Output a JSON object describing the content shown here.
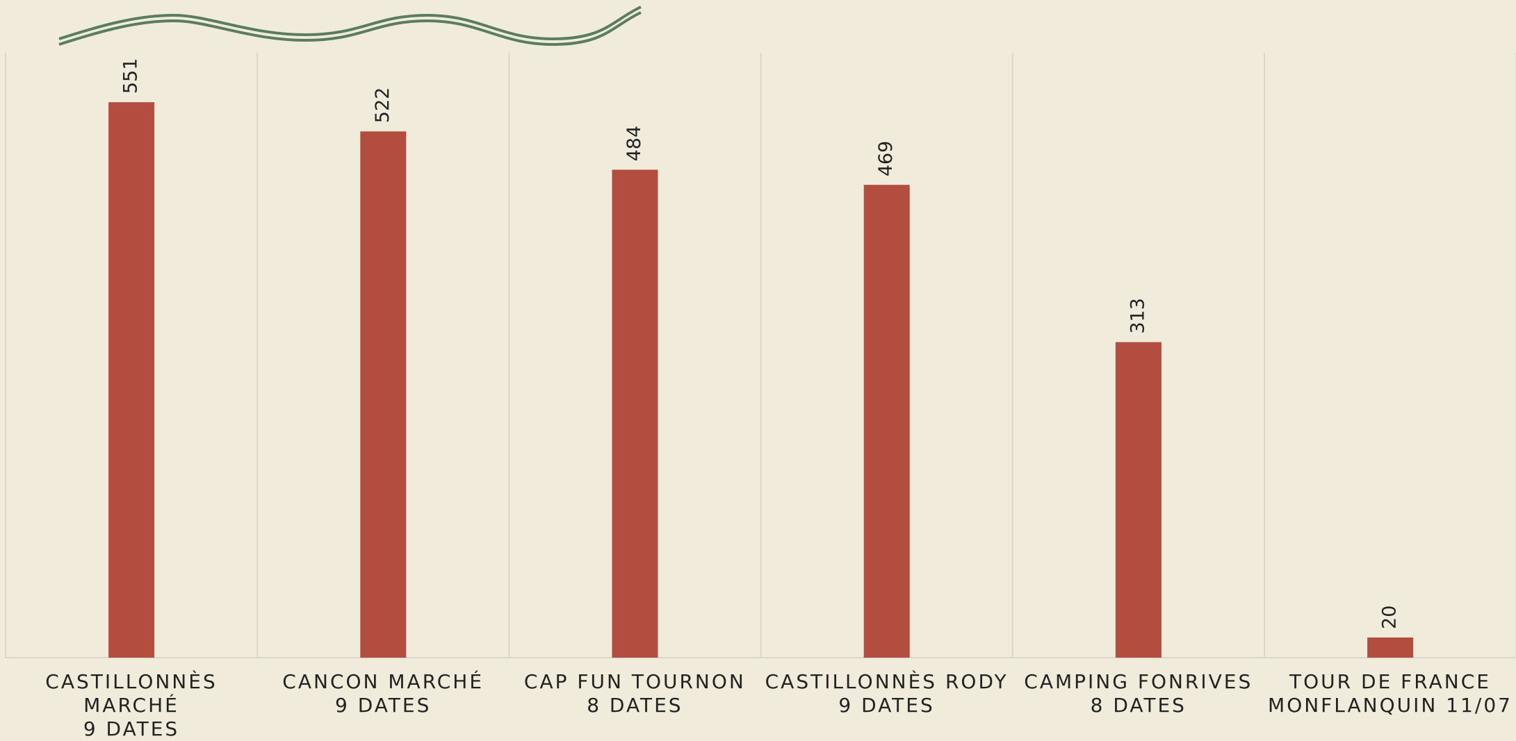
{
  "chart_data": {
    "type": "bar",
    "categories": [
      "CASTILLONNÈS\nMARCHÉ\n9 DATES",
      "CANCON MARCHÉ\n9 DATES",
      "CAP FUN TOURNON\n8 DATES",
      "CASTILLONNÈS RODY\n9 DATES",
      "CAMPING FONRIVES\n8 DATES",
      "TOUR DE FRANCE\nMONFLANQUIN 11/07"
    ],
    "values": [
      551,
      522,
      484,
      469,
      313,
      20
    ],
    "color": "#b34d40",
    "ylim": [
      0,
      600
    ],
    "grid": true
  }
}
